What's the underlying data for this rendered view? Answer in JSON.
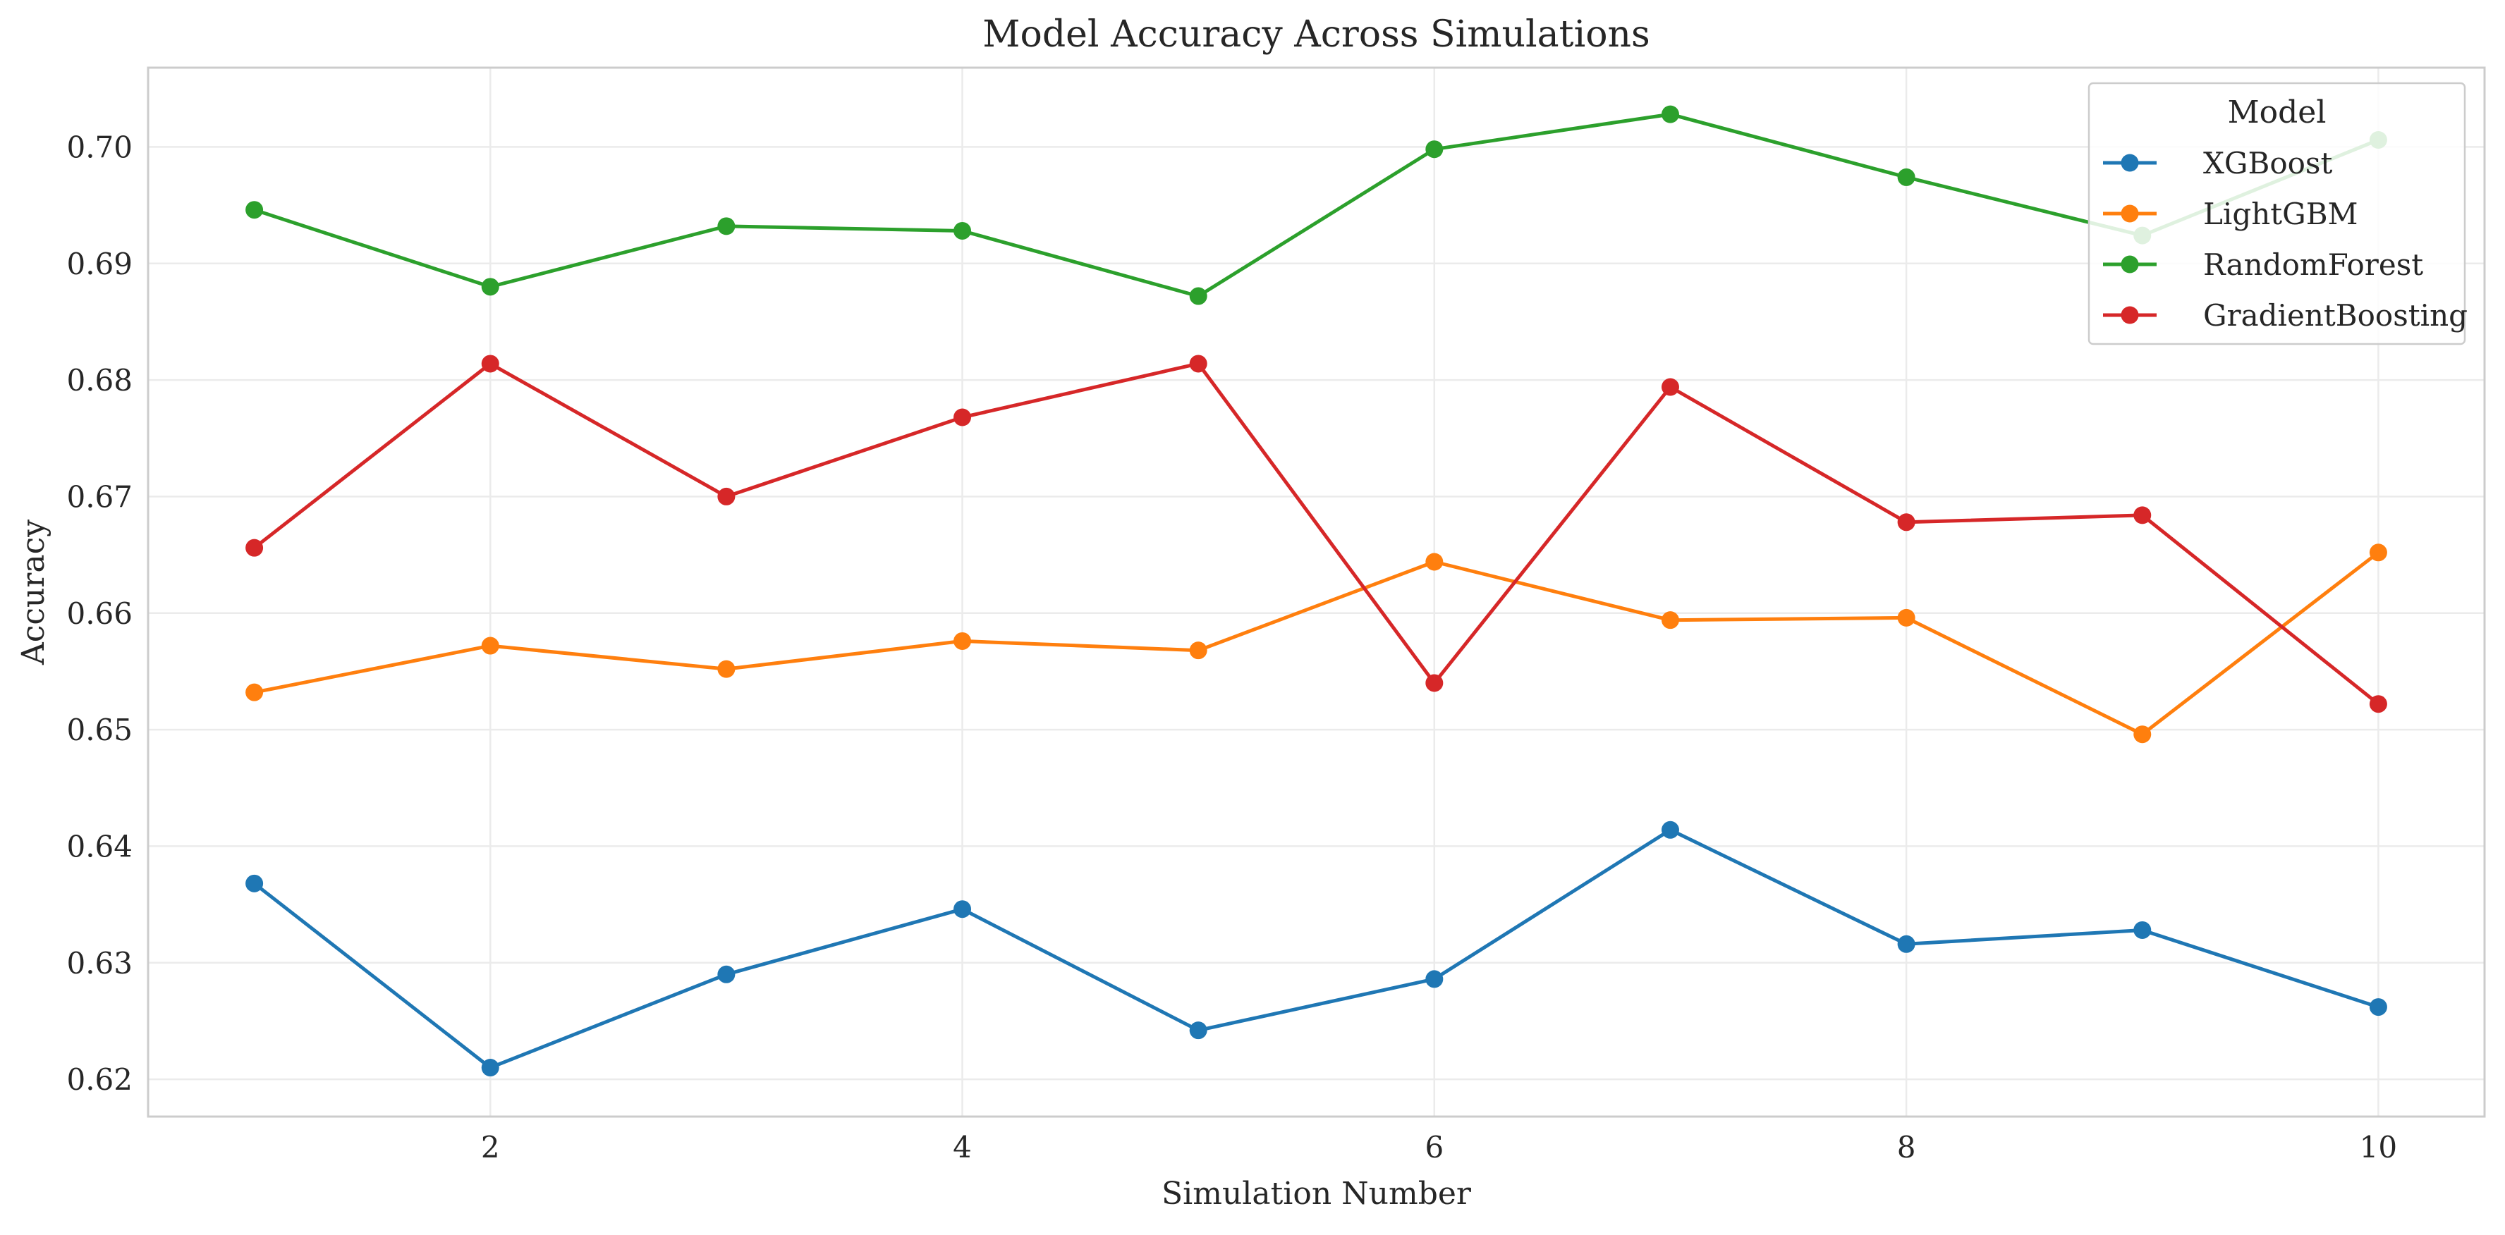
{
  "chart_data": {
    "type": "line",
    "title": "Model Accuracy Across Simulations",
    "xlabel": "Simulation Number",
    "ylabel": "Accuracy",
    "x": [
      1,
      2,
      3,
      4,
      5,
      6,
      7,
      8,
      9,
      10
    ],
    "xlim": [
      0.55,
      10.45
    ],
    "ylim": [
      0.6168,
      0.7068
    ],
    "xticks": [
      2,
      4,
      6,
      8,
      10
    ],
    "yticks": [
      0.62,
      0.63,
      0.64,
      0.65,
      0.66,
      0.67,
      0.68,
      0.69,
      0.7
    ],
    "ytick_labels": [
      "0.62",
      "0.63",
      "0.64",
      "0.65",
      "0.66",
      "0.67",
      "0.68",
      "0.69",
      "0.70"
    ],
    "grid": true,
    "legend": {
      "title": "Model",
      "placement": "top-right"
    },
    "series": [
      {
        "name": "XGBoost",
        "color": "#1f77b4",
        "values": [
          0.6368,
          0.621,
          0.629,
          0.6346,
          0.6242,
          0.6286,
          0.6414,
          0.6316,
          0.6328,
          0.6262
        ]
      },
      {
        "name": "LightGBM",
        "color": "#ff7f0e",
        "values": [
          0.6532,
          0.6572,
          0.6552,
          0.6576,
          0.6568,
          0.6644,
          0.6594,
          0.6596,
          0.6496,
          0.6652
        ]
      },
      {
        "name": "RandomForest",
        "color": "#2ca02c",
        "values": [
          0.6946,
          0.688,
          0.6932,
          0.6928,
          0.6872,
          0.6998,
          0.7028,
          0.6974,
          0.6924,
          0.7006
        ]
      },
      {
        "name": "GradientBoosting",
        "color": "#d62728",
        "values": [
          0.6656,
          0.6814,
          0.67,
          0.6768,
          0.6814,
          0.654,
          0.6794,
          0.6678,
          0.6684,
          0.6522
        ]
      }
    ]
  }
}
